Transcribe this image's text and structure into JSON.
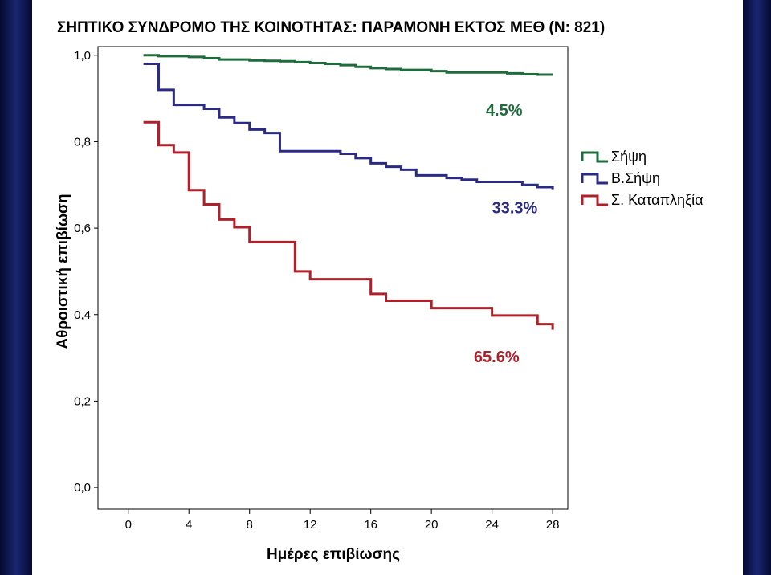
{
  "chart_data": {
    "type": "line",
    "step": true,
    "title": "ΣΗΠΤΙΚΟ ΣΥΝΔΡΟΜΟ ΤΗΣ ΚΟΙΝΟΤΗΤΑΣ: ΠΑΡΑΜΟΝΗ ΕΚΤΟΣ ΜΕΘ (Ν: 821)",
    "xlabel": "Ημέρες επιβίωσης",
    "ylabel": "Αθροιστική επιβίωση",
    "xlim": [
      -2,
      29
    ],
    "ylim": [
      -0.05,
      1.02
    ],
    "xticks": [
      0,
      4,
      8,
      12,
      16,
      20,
      24,
      28
    ],
    "xtick_labels": [
      "0",
      "4",
      "8",
      "12",
      "16",
      "20",
      "24",
      "28"
    ],
    "yticks": [
      0,
      0.2,
      0.4,
      0.6,
      0.8,
      1.0
    ],
    "ytick_labels": [
      "0,0",
      "0,2",
      "0,4",
      "0,6",
      "0,8",
      "1,0"
    ],
    "grid": false,
    "legend_position": "right",
    "series": [
      {
        "name": "Σήψη",
        "color": "#1e6b3c",
        "x": [
          1,
          2,
          4,
          5,
          6,
          8,
          9,
          10,
          11,
          12,
          13,
          14,
          15,
          16,
          17,
          18,
          20,
          21,
          24,
          25,
          26,
          27,
          28
        ],
        "y": [
          1.0,
          0.998,
          0.996,
          0.993,
          0.99,
          0.988,
          0.987,
          0.986,
          0.984,
          0.982,
          0.98,
          0.977,
          0.973,
          0.97,
          0.968,
          0.966,
          0.963,
          0.96,
          0.96,
          0.958,
          0.956,
          0.955,
          0.955
        ],
        "annotation": "4.5%",
        "annotation_xy": [
          24.8,
          0.86
        ]
      },
      {
        "name": "Β.Σήψη",
        "color": "#2b2b86",
        "x": [
          1,
          2,
          3,
          4,
          5,
          6,
          7,
          8,
          9,
          10,
          11,
          12,
          13,
          14,
          15,
          16,
          17,
          18,
          19,
          20,
          21,
          22,
          23,
          24,
          25,
          26,
          27,
          28
        ],
        "y": [
          0.98,
          0.92,
          0.885,
          0.885,
          0.876,
          0.856,
          0.843,
          0.828,
          0.82,
          0.778,
          0.778,
          0.778,
          0.778,
          0.772,
          0.762,
          0.75,
          0.742,
          0.735,
          0.722,
          0.722,
          0.716,
          0.712,
          0.707,
          0.707,
          0.707,
          0.7,
          0.695,
          0.69
        ],
        "annotation": "33.3%",
        "annotation_xy": [
          25.5,
          0.635
        ]
      },
      {
        "name": "Σ. Καταπληξία",
        "color": "#b0202a",
        "x": [
          1,
          2,
          3,
          4,
          5,
          6,
          7,
          8,
          9,
          10,
          11,
          12,
          13,
          14,
          15,
          16,
          17,
          18,
          19,
          20,
          21,
          22,
          23,
          24,
          25,
          26,
          27,
          28
        ],
        "y": [
          0.845,
          0.792,
          0.775,
          0.688,
          0.655,
          0.62,
          0.602,
          0.568,
          0.568,
          0.568,
          0.5,
          0.482,
          0.482,
          0.482,
          0.482,
          0.448,
          0.432,
          0.432,
          0.432,
          0.415,
          0.415,
          0.415,
          0.415,
          0.398,
          0.398,
          0.398,
          0.378,
          0.365
        ],
        "annotation": "65.6%",
        "annotation_xy": [
          24.3,
          0.29
        ]
      }
    ]
  }
}
